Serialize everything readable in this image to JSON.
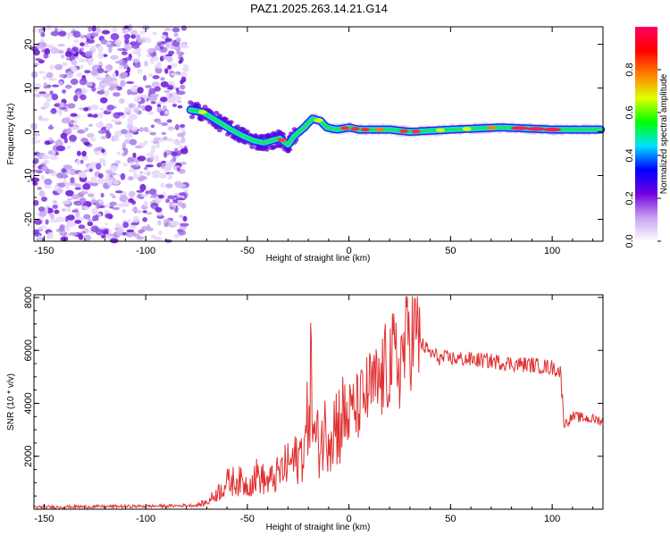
{
  "title": "PAZ1.2025.263.14.21.G14",
  "chart_data": [
    {
      "type": "heatmap",
      "xlabel": "Height of straight line (km)",
      "ylabel": "Frequency (Hz)",
      "xlim": [
        -155,
        125
      ],
      "ylim": [
        -25,
        24
      ],
      "xticks": [
        -150,
        -100,
        -50,
        0,
        50,
        100
      ],
      "xtick_labels": [
        "-150",
        "-100",
        "-50",
        "0",
        "50",
        "100"
      ],
      "yticks": [
        -20,
        -10,
        0,
        10,
        20
      ],
      "ytick_labels": [
        "-20",
        "-10",
        "0",
        "10",
        "20"
      ],
      "ridge_frequency": {
        "x": [
          -78,
          -72,
          -65,
          -58,
          -52,
          -47,
          -42,
          -38,
          -34,
          -30,
          -27,
          -22,
          -18,
          -14,
          -11,
          -6,
          0,
          5,
          10,
          20,
          30,
          50,
          75,
          100,
          124
        ],
        "y": [
          5,
          4.5,
          2.5,
          0.5,
          -1,
          -2,
          -2.5,
          -2,
          -1.5,
          -3,
          -1,
          1,
          3,
          2.5,
          1,
          0.5,
          1,
          0.5,
          0.5,
          0.5,
          0,
          0.5,
          1,
          0.5,
          0.5
        ]
      },
      "noise_region_x": [
        -155,
        -80
      ],
      "colorbar": {
        "label": "Normalized spectral amplitude",
        "range": [
          0,
          1
        ],
        "ticks": [
          0,
          0.2,
          0.4,
          0.6,
          0.8
        ],
        "tick_labels": [
          "0.0",
          "0.2",
          "0.4",
          "0.6",
          "0.8"
        ],
        "colors": [
          "#ffffff",
          "#c8a0f0",
          "#7000e0",
          "#0000ff",
          "#00e0ff",
          "#00ff00",
          "#e0ff00",
          "#ff8000",
          "#ff0000",
          "#ff0060"
        ]
      }
    },
    {
      "type": "line",
      "xlabel": "Height of straight line (km)",
      "ylabel": "SNR (10 * v/v)",
      "xlim": [
        -155,
        125
      ],
      "ylim": [
        0,
        8100
      ],
      "xticks": [
        -150,
        -100,
        -50,
        0,
        50,
        100
      ],
      "xtick_labels": [
        "-150",
        "-100",
        "-50",
        "0",
        "50",
        "100"
      ],
      "yticks": [
        2000,
        4000,
        6000,
        8000
      ],
      "ytick_labels": [
        "2000",
        "4000",
        "6000",
        "8000"
      ],
      "color": "#e03030",
      "series": [
        {
          "name": "SNR",
          "x": [
            -155,
            -120,
            -90,
            -75,
            -70,
            -65,
            -60,
            -55,
            -50,
            -45,
            -40,
            -35,
            -30,
            -25,
            -21,
            -19,
            -17,
            -15,
            -10,
            -5,
            0,
            5,
            10,
            15,
            20,
            25,
            30,
            35,
            40,
            45,
            50,
            60,
            70,
            80,
            90,
            100,
            104,
            106,
            110,
            115,
            120,
            124
          ],
          "y": [
            80,
            100,
            120,
            150,
            250,
            600,
            1000,
            1100,
            900,
            1300,
            1000,
            1300,
            1700,
            1900,
            2600,
            5200,
            2600,
            2500,
            3100,
            3300,
            3600,
            3900,
            4500,
            4700,
            5600,
            5500,
            6900,
            6300,
            5900,
            5700,
            5700,
            5650,
            5600,
            5500,
            5450,
            5350,
            5200,
            3200,
            3500,
            3450,
            3400,
            3350
          ]
        }
      ]
    }
  ]
}
